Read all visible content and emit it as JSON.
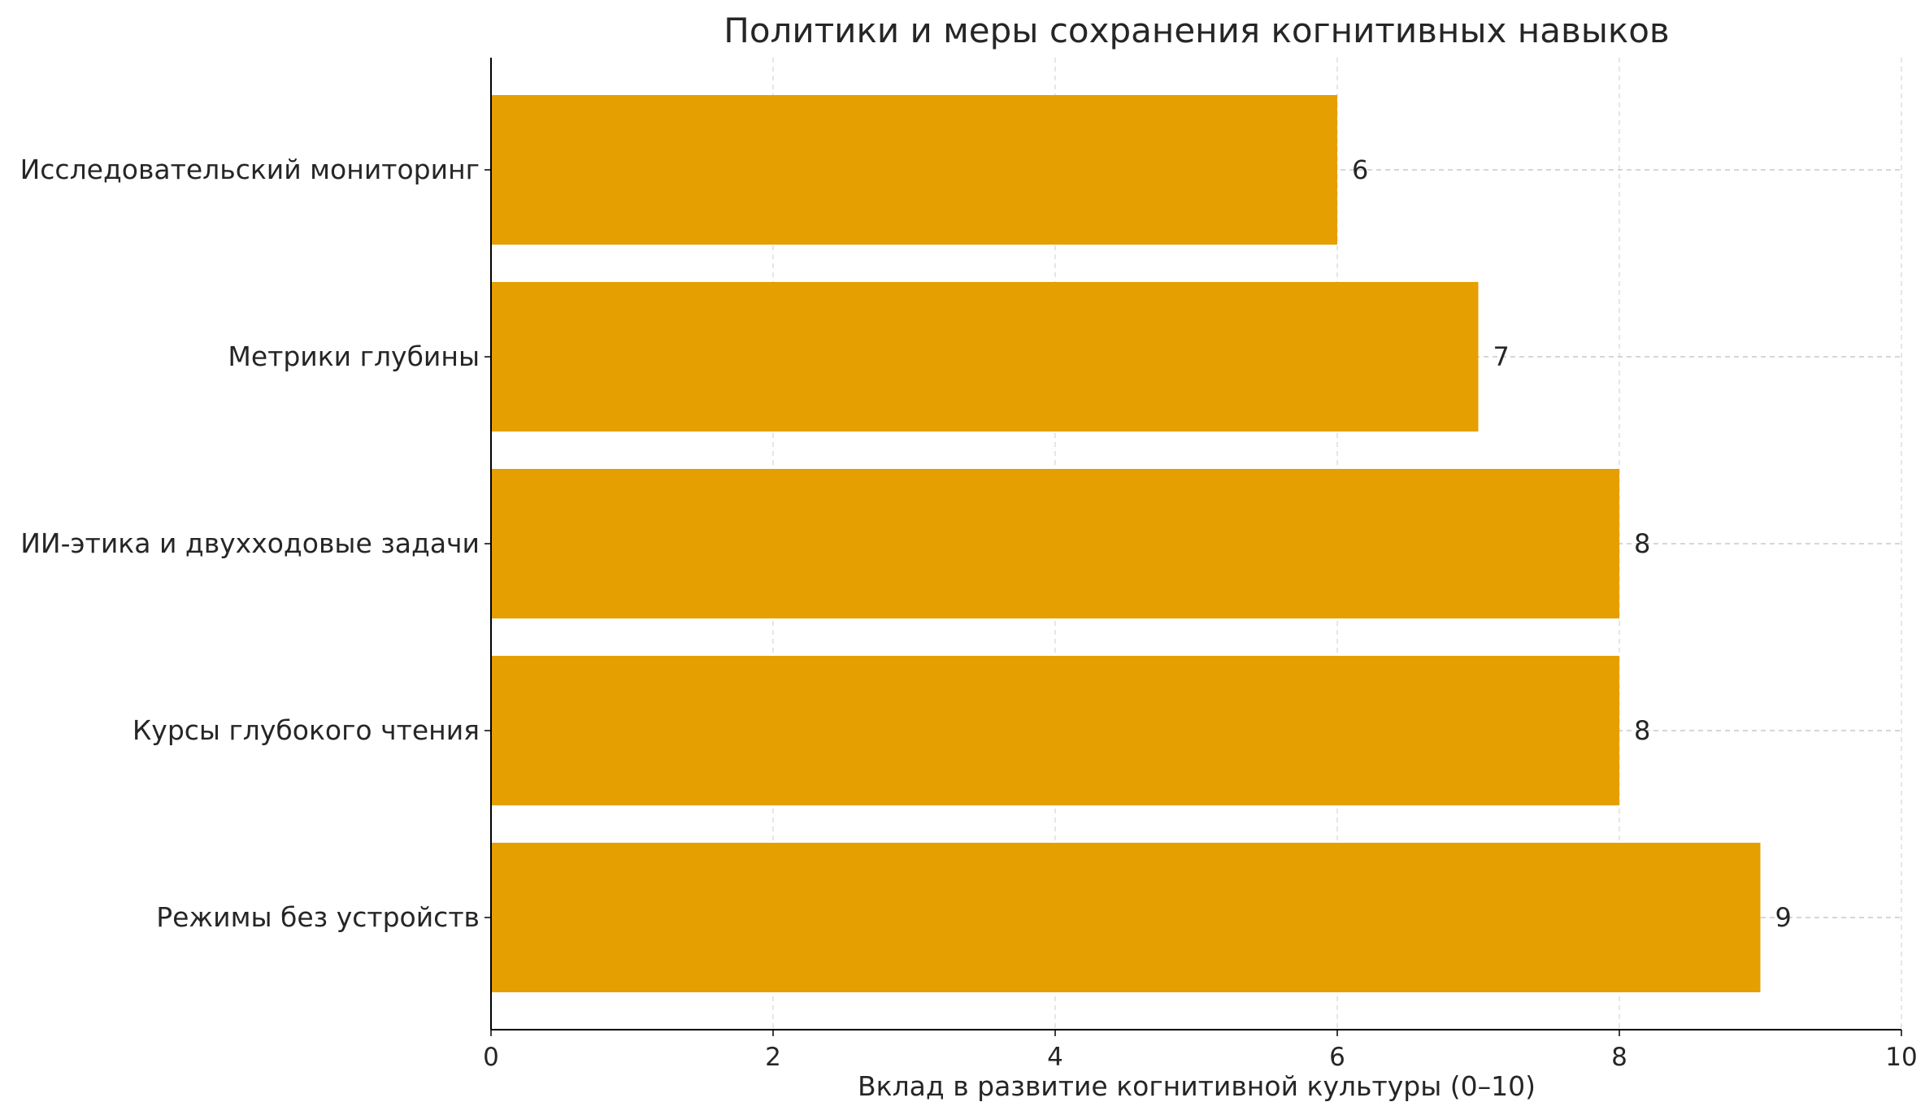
{
  "chart_data": {
    "type": "bar",
    "orientation": "horizontal",
    "title": "Политики и меры сохранения когнитивных навыков",
    "xlabel": "Вклад в развитие когнитивной культуры (0–10)",
    "ylabel": "",
    "categories": [
      "Исследовательский мониторинг",
      "Метрики глубины",
      "ИИ-этика и двухходовые задачи",
      "Курсы глубокого чтения",
      "Режимы без устройств"
    ],
    "values": [
      6,
      7,
      8,
      8,
      9
    ],
    "data_labels": [
      "6",
      "7",
      "8",
      "8",
      "9"
    ],
    "xlim": [
      0,
      10
    ],
    "xticks": [
      0,
      2,
      4,
      6,
      8,
      10
    ],
    "xtick_labels": [
      "0",
      "2",
      "4",
      "6",
      "8",
      "10"
    ],
    "grid": true,
    "bar_color": "#E69F00"
  }
}
